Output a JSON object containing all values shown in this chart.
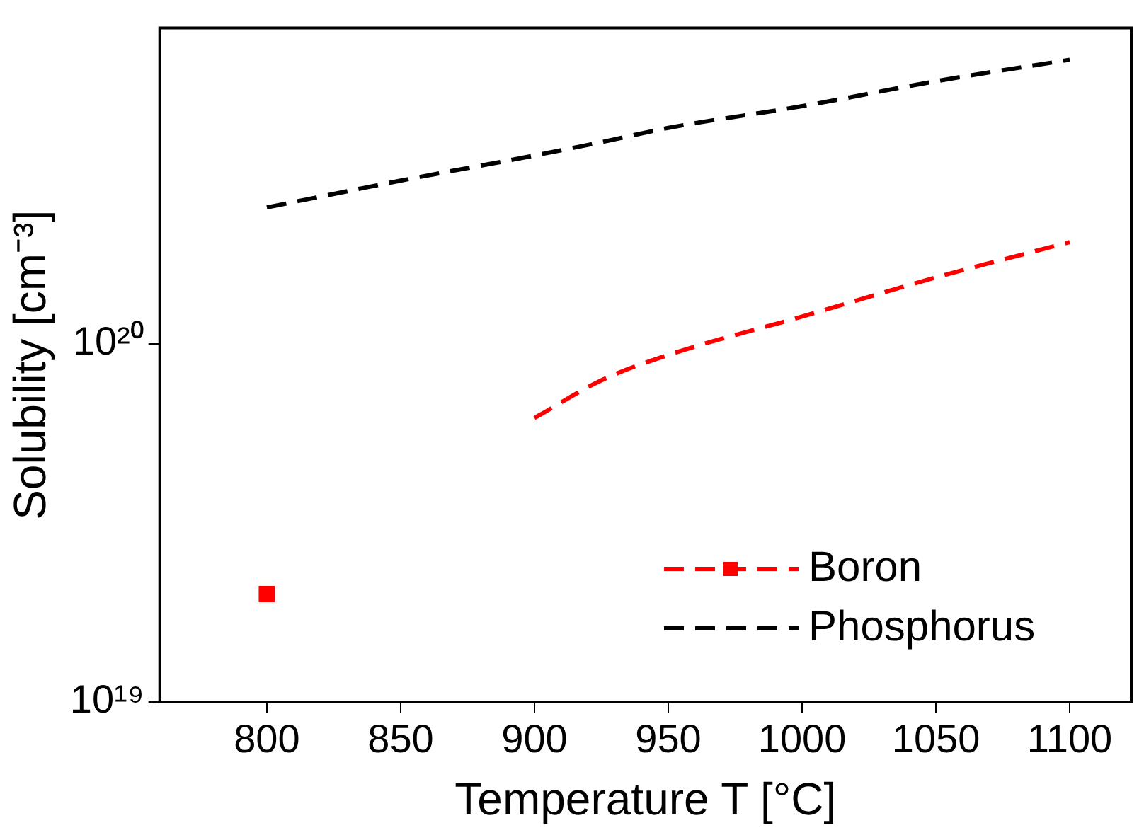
{
  "chart_data": {
    "type": "line",
    "xlabel": "Temperature T [°C]",
    "ylabel": "Solubility [cm⁻³]",
    "x": [
      800,
      850,
      900,
      925,
      950,
      1000,
      1050,
      1100
    ],
    "series": [
      {
        "name": "Boron",
        "color": "#ff0000",
        "x": [
          900,
          925,
          950,
          1000,
          1050,
          1100
        ],
        "values": [
          6.2e+19,
          7.9e+19,
          9.3e+19,
          1.19e+20,
          1.53e+20,
          1.92e+20
        ],
        "line_style": "dashed"
      },
      {
        "type": "scatter",
        "color": "#ff0000",
        "x": [
          800
        ],
        "values": [
          2e+19
        ],
        "marker": "square"
      },
      {
        "name": "Phosphorus",
        "color": "#000000",
        "values": [
          2.4e+20,
          2.85e+20,
          3.35e+20,
          3.65e+20,
          4e+20,
          4.6e+20,
          5.4e+20,
          6.2e+20
        ],
        "line_style": "dashed"
      }
    ],
    "log": "y",
    "xlim": [
      760,
      1123
    ],
    "xticks": [
      800,
      850,
      900,
      950,
      1000,
      1050,
      1100
    ],
    "ylim": [
      1e+19,
      7.6e+20
    ],
    "yticks": [
      {
        "value": 1e+19,
        "label": "10¹⁹"
      },
      {
        "value": 1e+20,
        "label": "10²⁰"
      }
    ],
    "grid": false,
    "legend": "bottom right"
  }
}
